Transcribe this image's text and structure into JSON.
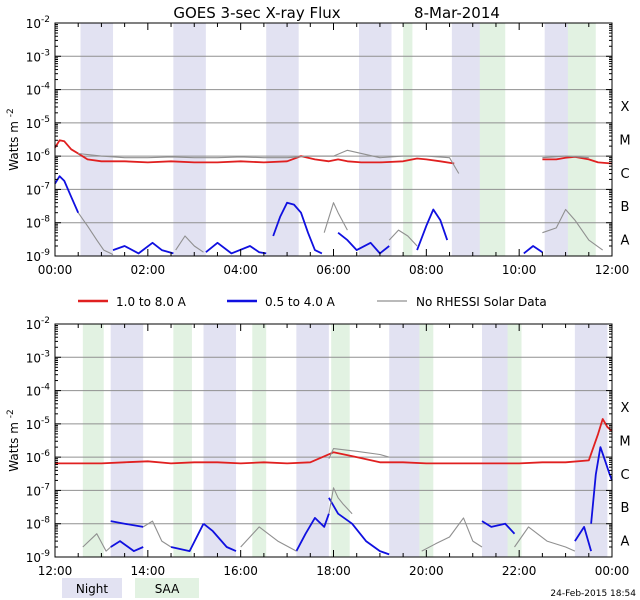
{
  "title": "GOES 3-sec X-ray Flux",
  "date": "8-Mar-2014",
  "timestamp": "24-Feb-2015 18:54",
  "colors": {
    "long": "#e02020",
    "short": "#1010e0",
    "no_rhessi": "#909090",
    "night": "#e2e2f2",
    "saa": "#e2f2e2",
    "grid": "#909090"
  },
  "legend": {
    "long": "1.0 to 8.0 A",
    "short": "0.5 to 4.0 A",
    "no_rhessi": "No RHESSI Solar Data",
    "night": "Night",
    "saa": "SAA"
  },
  "chart_data": {
    "type": "line",
    "title": "GOES 3-sec X-ray Flux 8-Mar-2014",
    "ylabel_main": "Watts m",
    "ylabel_exp": "-2",
    "ylim_exp": [
      -9,
      -2
    ],
    "y_ticks": [
      {
        "exp": -2,
        "label": "-2"
      },
      {
        "exp": -3,
        "label": "-3"
      },
      {
        "exp": -4,
        "label": "-4"
      },
      {
        "exp": -5,
        "label": "-5"
      },
      {
        "exp": -6,
        "label": "-6"
      },
      {
        "exp": -7,
        "label": "-7"
      },
      {
        "exp": -8,
        "label": "-8"
      },
      {
        "exp": -9,
        "label": "-9"
      }
    ],
    "flare_classes": [
      {
        "label": "X",
        "exp": -4.5
      },
      {
        "label": "M",
        "exp": -5.5
      },
      {
        "label": "C",
        "exp": -6.5
      },
      {
        "label": "B",
        "exp": -7.5
      },
      {
        "label": "A",
        "exp": -8.5
      }
    ],
    "panels": [
      {
        "name": "top",
        "x_range_hours": [
          0,
          12
        ],
        "x_tick_labels": [
          {
            "h": 0,
            "label": "00:00"
          },
          {
            "h": 2,
            "label": "02:00"
          },
          {
            "h": 4,
            "label": "04:00"
          },
          {
            "h": 6,
            "label": "06:00"
          },
          {
            "h": 8,
            "label": "08:00"
          },
          {
            "h": 10,
            "label": "10:00"
          },
          {
            "h": 12,
            "label": "12:00"
          }
        ],
        "night_hours": [
          [
            0.55,
            1.25
          ],
          [
            2.55,
            3.25
          ],
          [
            4.55,
            5.25
          ],
          [
            6.55,
            7.25
          ],
          [
            8.55,
            9.25
          ],
          [
            10.55,
            11.25
          ]
        ],
        "saa_hours": [
          [
            7.5,
            7.7
          ],
          [
            9.15,
            9.7
          ],
          [
            11.05,
            11.65
          ]
        ],
        "series": [
          {
            "name": "1.0 to 8.0 A",
            "color_key": "long",
            "segments": [
              {
                "x": [
                  0.0,
                  0.1,
                  0.2,
                  0.35,
                  0.5,
                  0.7,
                  1.0,
                  1.5,
                  2.0,
                  2.5,
                  3.0,
                  3.5,
                  4.0,
                  4.5,
                  5.0,
                  5.3,
                  5.6,
                  5.9,
                  6.1,
                  6.3,
                  6.6,
                  7.0,
                  7.5,
                  7.8,
                  8.0,
                  8.3,
                  8.6
                ],
                "y": [
                  1.8e-06,
                  3e-06,
                  2.8e-06,
                  1.6e-06,
                  1.2e-06,
                  8e-07,
                  7e-07,
                  7e-07,
                  6.5e-07,
                  7e-07,
                  6.5e-07,
                  6.5e-07,
                  7e-07,
                  6.5e-07,
                  7e-07,
                  1e-06,
                  8e-07,
                  7e-07,
                  8e-07,
                  7e-07,
                  6.5e-07,
                  6.5e-07,
                  7e-07,
                  8.5e-07,
                  8e-07,
                  7e-07,
                  6e-07
                ]
              },
              {
                "x": [
                  10.5,
                  10.8,
                  11.0,
                  11.2,
                  11.5,
                  11.7,
                  12.0
                ],
                "y": [
                  8e-07,
                  8e-07,
                  9e-07,
                  9.5e-07,
                  8e-07,
                  6.5e-07,
                  6e-07
                ]
              }
            ]
          },
          {
            "name": "0.5 to 4.0 A",
            "color_key": "short",
            "segments": [
              {
                "x": [
                  0.0,
                  0.1,
                  0.2,
                  0.35,
                  0.5
                ],
                "y": [
                  1.5e-07,
                  2.5e-07,
                  1.8e-07,
                  6e-08,
                  2e-08
                ]
              },
              {
                "x": [
                  1.25,
                  1.5,
                  1.8,
                  2.1,
                  2.3,
                  2.55
                ],
                "y": [
                  1.5e-09,
                  2e-09,
                  1.2e-09,
                  2.5e-09,
                  1.5e-09,
                  1.2e-09
                ]
              },
              {
                "x": [
                  3.25,
                  3.5,
                  3.8,
                  4.2,
                  4.4,
                  4.55
                ],
                "y": [
                  1.3e-09,
                  2.5e-09,
                  1.2e-09,
                  2e-09,
                  1.3e-09,
                  1.2e-09
                ]
              },
              {
                "x": [
                  4.7,
                  4.85,
                  5.0,
                  5.15,
                  5.3,
                  5.45,
                  5.6,
                  5.75
                ],
                "y": [
                  4e-09,
                  1.5e-08,
                  4e-08,
                  3.5e-08,
                  2e-08,
                  5e-09,
                  1.5e-09,
                  1.2e-09
                ]
              },
              {
                "x": [
                  6.1,
                  6.3,
                  6.5,
                  6.8,
                  7.0,
                  7.2
                ],
                "y": [
                  5e-09,
                  3e-09,
                  1.5e-09,
                  2.5e-09,
                  1.2e-09,
                  2e-09
                ]
              },
              {
                "x": [
                  7.8,
                  8.0,
                  8.15,
                  8.3,
                  8.45
                ],
                "y": [
                  1.5e-09,
                  8e-09,
                  2.5e-08,
                  1.2e-08,
                  3e-09
                ]
              },
              {
                "x": [
                  10.1,
                  10.3,
                  10.5
                ],
                "y": [
                  1.2e-09,
                  2e-09,
                  1.3e-09
                ]
              }
            ]
          },
          {
            "name": "No RHESSI Solar Data",
            "color_key": "no_rhessi",
            "segments": [
              {
                "x": [
                  0.5,
                  0.7,
                  0.9,
                  1.05,
                  1.2,
                  1.25
                ],
                "y": [
                  2e-08,
                  8e-09,
                  3e-09,
                  1.5e-09,
                  1.2e-09,
                  1.1e-09
                ]
              },
              {
                "x": [
                  0.5,
                  1.0,
                  1.5,
                  2.0,
                  2.5,
                  3.0,
                  3.5,
                  4.0,
                  4.5,
                  5.0,
                  5.5,
                  6.0,
                  6.3,
                  7.0,
                  7.5,
                  8.0,
                  8.5,
                  8.7
                ],
                "y": [
                  1.2e-06,
                  1e-06,
                  9e-07,
                  9e-07,
                  9.5e-07,
                  9e-07,
                  9e-07,
                  9.5e-07,
                  9e-07,
                  9e-07,
                  1e-06,
                  1e-06,
                  1.5e-06,
                  9e-07,
                  1e-06,
                  1e-06,
                  9e-07,
                  3e-07
                ]
              },
              {
                "x": [
                  2.6,
                  2.8,
                  3.0,
                  3.2
                ],
                "y": [
                  1.5e-09,
                  4e-09,
                  2e-09,
                  1.3e-09
                ]
              },
              {
                "x": [
                  5.8,
                  6.0,
                  6.1,
                  6.3
                ],
                "y": [
                  5e-09,
                  4e-08,
                  2e-08,
                  6e-09
                ]
              },
              {
                "x": [
                  7.2,
                  7.4,
                  7.6,
                  7.8
                ],
                "y": [
                  3e-09,
                  6e-09,
                  4e-09,
                  2e-09
                ]
              },
              {
                "x": [
                  10.5,
                  10.8,
                  11.0,
                  11.2,
                  11.5,
                  11.8
                ],
                "y": [
                  5e-09,
                  7e-09,
                  2.5e-08,
                  1.2e-08,
                  3e-09,
                  1.5e-09
                ]
              },
              {
                "x": [
                  10.5,
                  11.0,
                  11.5
                ],
                "y": [
                  9e-07,
                  1e-06,
                  9e-07
                ]
              }
            ]
          }
        ]
      },
      {
        "name": "bottom",
        "x_range_hours": [
          12,
          24
        ],
        "x_tick_labels": [
          {
            "h": 12,
            "label": "12:00"
          },
          {
            "h": 14,
            "label": "14:00"
          },
          {
            "h": 16,
            "label": "16:00"
          },
          {
            "h": 18,
            "label": "18:00"
          },
          {
            "h": 20,
            "label": "20:00"
          },
          {
            "h": 22,
            "label": "22:00"
          },
          {
            "h": 24,
            "label": "00:00"
          }
        ],
        "night_hours": [
          [
            13.2,
            13.9
          ],
          [
            15.2,
            15.9
          ],
          [
            17.2,
            17.9
          ],
          [
            19.2,
            19.9
          ],
          [
            21.2,
            21.9
          ],
          [
            23.2,
            23.9
          ]
        ],
        "saa_hours": [
          [
            12.6,
            13.05
          ],
          [
            14.55,
            14.95
          ],
          [
            16.25,
            16.55
          ],
          [
            17.95,
            18.35
          ],
          [
            19.85,
            20.15
          ],
          [
            21.75,
            22.05
          ]
        ],
        "series": [
          {
            "name": "1.0 to 8.0 A",
            "color_key": "long",
            "segments": [
              {
                "x": [
                  12.0,
                  12.5,
                  13.0,
                  13.5,
                  14.0,
                  14.5,
                  15.0,
                  15.5,
                  16.0,
                  16.5,
                  17.0,
                  17.5,
                  18.0,
                  18.5,
                  19.0,
                  19.5,
                  20.0,
                  20.5,
                  21.0,
                  21.5,
                  22.0,
                  22.5,
                  23.0,
                  23.5,
                  23.7,
                  23.8,
                  23.9,
                  24.0
                ],
                "y": [
                  6.5e-07,
                  6.5e-07,
                  6.5e-07,
                  7e-07,
                  7.5e-07,
                  6.5e-07,
                  7e-07,
                  7e-07,
                  6.5e-07,
                  7e-07,
                  6.5e-07,
                  7e-07,
                  1.4e-06,
                  1e-06,
                  7e-07,
                  7e-07,
                  6.5e-07,
                  6.5e-07,
                  6.5e-07,
                  6.5e-07,
                  6.5e-07,
                  7e-07,
                  7e-07,
                  8e-07,
                  5e-06,
                  1.4e-05,
                  8e-06,
                  6e-06
                ]
              }
            ]
          },
          {
            "name": "0.5 to 4.0 A",
            "color_key": "short",
            "segments": [
              {
                "x": [
                  13.2,
                  13.5,
                  13.9
                ],
                "y": [
                  1.2e-08,
                  1e-08,
                  8e-09
                ]
              },
              {
                "x": [
                  13.2,
                  13.4,
                  13.7,
                  13.9
                ],
                "y": [
                  2e-09,
                  3e-09,
                  1.5e-09,
                  2e-09
                ]
              },
              {
                "x": [
                  14.5,
                  14.9,
                  15.2
                ],
                "y": [
                  2e-09,
                  1.5e-09,
                  1e-08
                ]
              },
              {
                "x": [
                  15.2,
                  15.4,
                  15.7,
                  15.9
                ],
                "y": [
                  1e-08,
                  6e-09,
                  2e-09,
                  1.5e-09
                ]
              },
              {
                "x": [
                  17.2,
                  17.4,
                  17.6,
                  17.8,
                  17.9
                ],
                "y": [
                  1.5e-09,
                  5e-09,
                  1.5e-08,
                  8e-09,
                  2e-08
                ]
              },
              {
                "x": [
                  17.9,
                  18.1,
                  18.4,
                  18.7,
                  19.0,
                  19.2
                ],
                "y": [
                  6e-08,
                  2e-08,
                  1e-08,
                  3e-09,
                  1.5e-09,
                  1.2e-09
                ]
              },
              {
                "x": [
                  21.2,
                  21.4,
                  21.7,
                  21.9
                ],
                "y": [
                  1.2e-08,
                  8e-09,
                  1e-08,
                  5e-09
                ]
              },
              {
                "x": [
                  23.2,
                  23.4,
                  23.55
                ],
                "y": [
                  3e-09,
                  8e-09,
                  1.5e-09
                ]
              },
              {
                "x": [
                  23.55,
                  23.65,
                  23.75,
                  23.85,
                  23.95,
                  24.0
                ],
                "y": [
                  1e-08,
                  3e-07,
                  2e-06,
                  8e-07,
                  3e-07,
                  2e-07
                ]
              }
            ]
          },
          {
            "name": "No RHESSI Solar Data",
            "color_key": "no_rhessi",
            "segments": [
              {
                "x": [
                  12.6,
                  12.9,
                  13.1,
                  13.2
                ],
                "y": [
                  2e-09,
                  5e-09,
                  1.5e-09,
                  2e-09
                ]
              },
              {
                "x": [
                  13.9,
                  14.1,
                  14.3,
                  14.5
                ],
                "y": [
                  8e-09,
                  1.2e-08,
                  3e-09,
                  2e-09
                ]
              },
              {
                "x": [
                  16.0,
                  16.4,
                  16.8,
                  17.2
                ],
                "y": [
                  2e-09,
                  8e-09,
                  3e-09,
                  1.5e-09
                ]
              },
              {
                "x": [
                  17.9,
                  18.0,
                  18.1,
                  18.2,
                  18.4
                ],
                "y": [
                  2e-08,
                  1.2e-07,
                  6e-08,
                  4e-08,
                  2e-08
                ]
              },
              {
                "x": [
                  17.9,
                  18.0,
                  18.5,
                  19.0,
                  19.2
                ],
                "y": [
                  9e-07,
                  1.8e-06,
                  1.5e-06,
                  1.2e-06,
                  1e-06
                ]
              },
              {
                "x": [
                  19.9,
                  20.2,
                  20.5,
                  20.8,
                  21.0,
                  21.2
                ],
                "y": [
                  1.5e-09,
                  2.5e-09,
                  4e-09,
                  1.5e-08,
                  3e-09,
                  2e-09
                ]
              },
              {
                "x": [
                  21.9,
                  22.2,
                  22.6,
                  23.0,
                  23.2
                ],
                "y": [
                  2e-09,
                  8e-09,
                  3e-09,
                  2e-09,
                  1.5e-09
                ]
              }
            ]
          }
        ]
      }
    ]
  }
}
